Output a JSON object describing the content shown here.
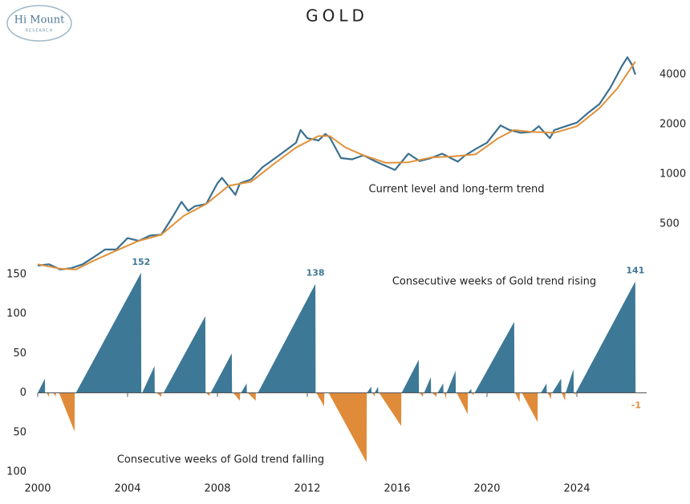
{
  "logo": {
    "name": "Hi Mount",
    "sub": "RESEARCH"
  },
  "chart_data": [
    {
      "type": "line",
      "title": "GOLD",
      "annotation": "Current level and long-term trend",
      "log_scale": true,
      "ylim": [
        250,
        5500
      ],
      "yticks": [
        500,
        1000,
        2000,
        4000
      ],
      "xlim": [
        2000,
        2026.8
      ],
      "series": [
        {
          "color": "#3b7090",
          "x": [
            2000,
            2000.5,
            2001,
            2001.5,
            2002,
            2002.5,
            2003,
            2003.5,
            2004,
            2004.5,
            2005,
            2005.5,
            2006,
            2006.4,
            2006.7,
            2007,
            2007.5,
            2008,
            2008.2,
            2008.8,
            2009,
            2009.5,
            2010,
            2010.5,
            2011,
            2011.5,
            2011.7,
            2012,
            2012.5,
            2012.8,
            2013,
            2013.5,
            2014,
            2014.5,
            2015,
            2015.9,
            2016.5,
            2017,
            2017.5,
            2018,
            2018.7,
            2019,
            2019.5,
            2020,
            2020.6,
            2021,
            2021.5,
            2022,
            2022.3,
            2022.8,
            2023,
            2023.5,
            2024,
            2024.5,
            2025,
            2025.5,
            2025.8,
            2026,
            2026.25,
            2026.45,
            2026.6
          ],
          "values": [
            280,
            285,
            265,
            270,
            285,
            315,
            350,
            350,
            410,
            395,
            425,
            430,
            550,
            680,
            600,
            640,
            660,
            880,
            950,
            750,
            880,
            930,
            1100,
            1230,
            1380,
            1550,
            1850,
            1650,
            1600,
            1750,
            1670,
            1250,
            1230,
            1300,
            1200,
            1060,
            1330,
            1200,
            1250,
            1330,
            1190,
            1290,
            1420,
            1550,
            1970,
            1850,
            1780,
            1800,
            1950,
            1650,
            1850,
            1950,
            2050,
            2350,
            2650,
            3350,
            4000,
            4500,
            5100,
            4600,
            4000
          ]
        },
        {
          "color": "#e0913a",
          "x": [
            2000,
            2001,
            2001.7,
            2002.5,
            2003.5,
            2004.5,
            2005.5,
            2006.5,
            2007.5,
            2008.5,
            2009.5,
            2010.5,
            2011.5,
            2012.5,
            2013,
            2013.7,
            2014.5,
            2015.5,
            2016.5,
            2017.5,
            2018.5,
            2019.5,
            2020.5,
            2021.2,
            2022,
            2023,
            2024,
            2025,
            2025.8,
            2026.6
          ],
          "values": [
            285,
            268,
            265,
            300,
            345,
            395,
            430,
            560,
            660,
            850,
            900,
            1150,
            1450,
            1700,
            1700,
            1450,
            1300,
            1170,
            1180,
            1260,
            1280,
            1320,
            1650,
            1850,
            1800,
            1780,
            1950,
            2500,
            3300,
            4800
          ]
        }
      ]
    },
    {
      "type": "area",
      "xlim": [
        2000,
        2026.8
      ],
      "xticks": [
        2000,
        2004,
        2008,
        2012,
        2016,
        2020,
        2024
      ],
      "ylim": [
        -112,
        160
      ],
      "yticks": [
        150,
        100,
        50,
        0,
        {
          "value": -50,
          "label": "50"
        },
        {
          "value": -100,
          "label": "100"
        }
      ],
      "series": [
        {
          "name": "Consecutive weeks of Gold trend rising",
          "color": "#3d7896",
          "x": [
            2000,
            2000.32,
            2000.33,
            2001.7,
            2004.6,
            2004.61,
            2004.65,
            2005.2,
            2005.21,
            2005.6,
            2007.46,
            2007.47,
            2007.7,
            2008.64,
            2008.65,
            2009.05,
            2009.3,
            2009.31,
            2009.8,
            2012.36,
            2012.37,
            2014.65,
            2014.85,
            2014.86,
            2015.0,
            2015.15,
            2015.16,
            2016.2,
            2016.96,
            2016.97,
            2017.2,
            2017.5,
            2017.51,
            2017.8,
            2018.05,
            2018.06,
            2018.2,
            2018.6,
            2018.61,
            2019.15,
            2019.3,
            2019.31,
            2019.45,
            2021.21,
            2021.22,
            2022.4,
            2022.65,
            2022.66,
            2022.9,
            2023.3,
            2023.31,
            2023.5,
            2023.85,
            2023.86,
            2023.95,
            2026.6,
            2026.61
          ],
          "values": [
            0,
            18,
            0,
            0,
            152,
            0,
            0,
            34,
            0,
            0,
            97,
            0,
            0,
            50,
            0,
            0,
            12,
            0,
            0,
            138,
            0,
            0,
            8,
            0,
            0,
            8,
            0,
            0,
            42,
            0,
            0,
            20,
            0,
            0,
            12,
            0,
            0,
            28,
            0,
            0,
            5,
            0,
            0,
            90,
            0,
            0,
            12,
            0,
            0,
            18,
            0,
            0,
            30,
            0,
            0,
            141,
            0
          ],
          "labels": [
            {
              "x": 2004.6,
              "value": 152
            },
            {
              "x": 2012.36,
              "value": 138
            },
            {
              "x": 2026.6,
              "value": 141
            }
          ]
        },
        {
          "name": "Consecutive weeks of Gold trend falling",
          "color": "#e08b3a",
          "x": [
            2000.4,
            2000.5,
            2000.51,
            2000.7,
            2000.8,
            2000.81,
            2000.95,
            2001.64,
            2001.65,
            2005.3,
            2005.5,
            2005.51,
            2007.5,
            2007.65,
            2007.66,
            2008.7,
            2009.0,
            2009.01,
            2009.35,
            2009.7,
            2009.71,
            2012.4,
            2012.75,
            2012.76,
            2012.95,
            2014.64,
            2014.65,
            2014.9,
            2015.0,
            2015.01,
            2015.2,
            2016.18,
            2016.19,
            2017.0,
            2017.15,
            2017.16,
            2017.55,
            2017.75,
            2017.76,
            2018.1,
            2018.18,
            2018.19,
            2018.65,
            2019.14,
            2019.15,
            2019.32,
            2019.4,
            2019.41,
            2021.25,
            2021.45,
            2021.46,
            2021.55,
            2022.25,
            2022.26,
            2022.7,
            2022.85,
            2022.86,
            2023.32,
            2023.48,
            2023.49,
            2023.87,
            2023.93,
            2023.94,
            2026.62,
            2026.64
          ],
          "values": [
            0,
            -5,
            0,
            0,
            -5,
            0,
            0,
            -49,
            0,
            0,
            -5,
            0,
            0,
            -4,
            0,
            0,
            -10,
            0,
            0,
            -10,
            0,
            0,
            -17,
            0,
            0,
            -88,
            0,
            0,
            -5,
            0,
            0,
            -42,
            0,
            0,
            -5,
            0,
            0,
            -5,
            0,
            0,
            -8,
            0,
            0,
            -27,
            0,
            0,
            -3,
            0,
            0,
            -12,
            0,
            0,
            -37,
            0,
            0,
            -8,
            0,
            0,
            -10,
            0,
            0,
            -3,
            0,
            0,
            -1
          ],
          "labels": [
            {
              "x": 2026.64,
              "value": -1
            }
          ]
        }
      ]
    }
  ]
}
